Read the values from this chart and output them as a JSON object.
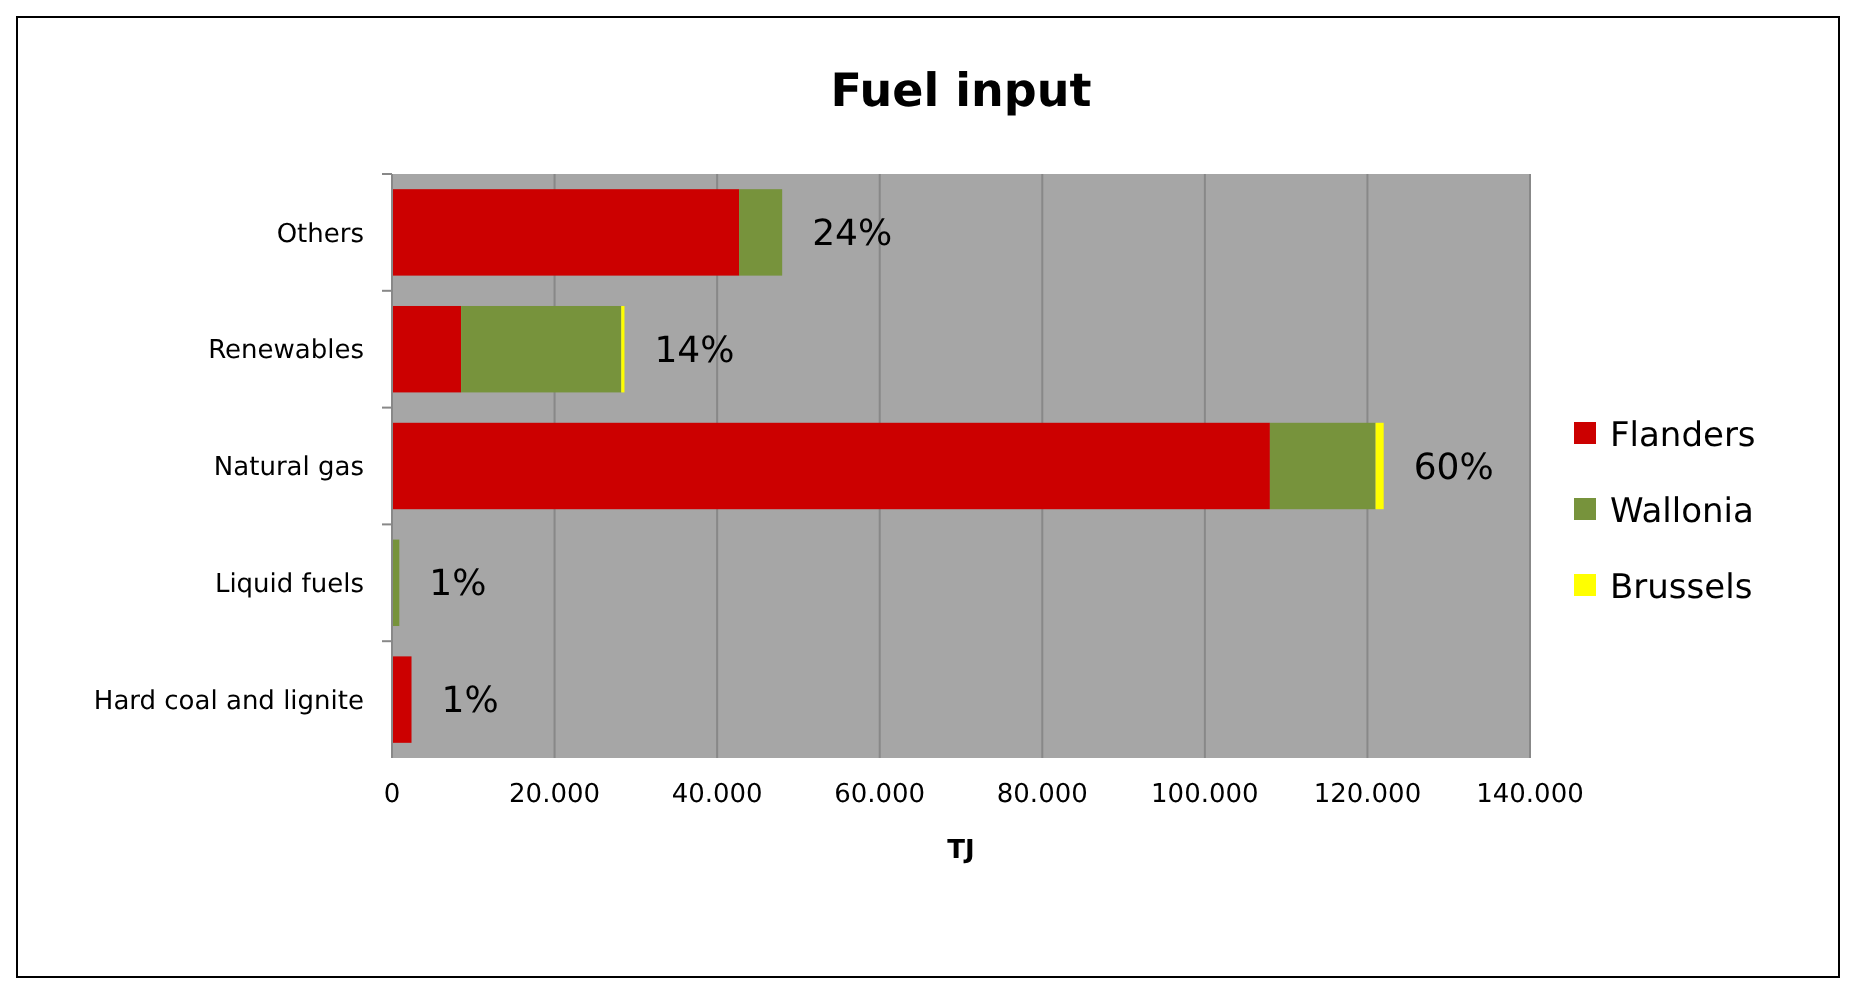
{
  "chart_data": {
    "type": "bar",
    "title": "Fuel input",
    "xlabel": "TJ",
    "orientation": "horizontal",
    "stacked": true,
    "categories": [
      "Others",
      "Renewables",
      "Natural gas",
      "Liquid fuels",
      "Hard coal and lignite"
    ],
    "series": [
      {
        "name": "Flanders",
        "color": "#cc0000",
        "values": [
          42700,
          8500,
          108000,
          0,
          2400
        ]
      },
      {
        "name": "Wallonia",
        "color": "#77933c",
        "values": [
          5300,
          19700,
          13000,
          900,
          0
        ]
      },
      {
        "name": "Brussels",
        "color": "#ffff00",
        "values": [
          0,
          400,
          1000,
          0,
          0
        ]
      }
    ],
    "annotations": [
      {
        "text": "24%",
        "x": 48000,
        "y": "Others"
      },
      {
        "text": "14%",
        "x": 28600,
        "y": "Renewables"
      },
      {
        "text": "60%",
        "x": 122000,
        "y": "Natural gas"
      },
      {
        "text": "1%",
        "x": 900,
        "y": "Liquid fuels"
      },
      {
        "text": "1%",
        "x": 2400,
        "y": "Hard coal and lignite"
      }
    ],
    "xlim": [
      0,
      140000
    ],
    "xticks": [
      {
        "value": 0,
        "label": "0"
      },
      {
        "value": 20000,
        "label": "20.000"
      },
      {
        "value": 40000,
        "label": "40.000"
      },
      {
        "value": 60000,
        "label": "60.000"
      },
      {
        "value": 80000,
        "label": "80.000"
      },
      {
        "value": 100000,
        "label": "100.000"
      },
      {
        "value": 120000,
        "label": "120.000"
      },
      {
        "value": 140000,
        "label": "140.000"
      }
    ],
    "grid": "x",
    "legend": "right"
  }
}
